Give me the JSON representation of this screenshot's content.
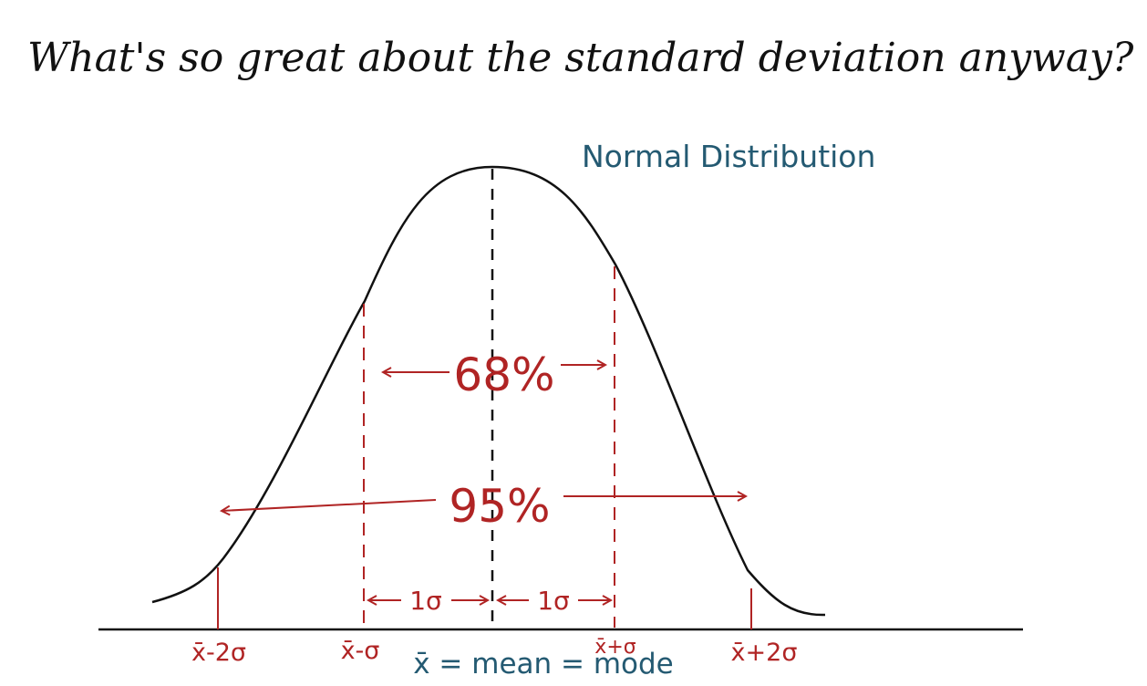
{
  "title": "What's so great about the standard deviation anyway?",
  "chart_label": "Normal Distribution",
  "colors": {
    "ink": "#111111",
    "red": "#b02424",
    "teal": "#245a72"
  },
  "annotations": {
    "pct_1sd": "68%",
    "pct_2sd": "95%",
    "one_sigma_left": "1σ",
    "one_sigma_right": "1σ"
  },
  "axis_labels": {
    "minus_2sd": "x̄-2σ",
    "minus_1sd": "x̄-σ",
    "plus_1sd": "x̄+σ",
    "plus_2sd": "x̄+2σ",
    "mean_note": "x̄ = mean = mode"
  }
}
